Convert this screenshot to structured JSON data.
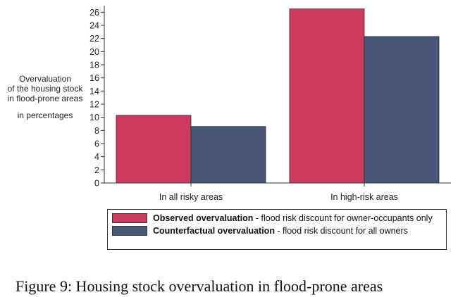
{
  "chart_data": {
    "type": "bar",
    "categories": [
      "In all risky areas",
      "In high-risk areas"
    ],
    "series": [
      {
        "name": "Observed overvaluation",
        "name_suffix": " - flood risk discount for owner-occupants only",
        "color": "#cc3a5e",
        "values": [
          10.3,
          26.5
        ]
      },
      {
        "name": "Counterfactual overvaluation",
        "name_suffix": " - flood risk discount for all owners",
        "color": "#4a5675",
        "values": [
          8.6,
          22.3
        ]
      }
    ],
    "ylabel_lines": [
      "Overvaluation",
      "of the housing stock",
      "in flood-prone areas",
      "in percentages"
    ],
    "ylim": [
      0,
      27
    ],
    "yticks": [
      0,
      2,
      4,
      6,
      8,
      10,
      12,
      14,
      16,
      18,
      20,
      22,
      24,
      26
    ],
    "grid": false,
    "legend_position": "bottom"
  },
  "caption": "Figure 9: Housing stock overvaluation in flood-prone areas"
}
